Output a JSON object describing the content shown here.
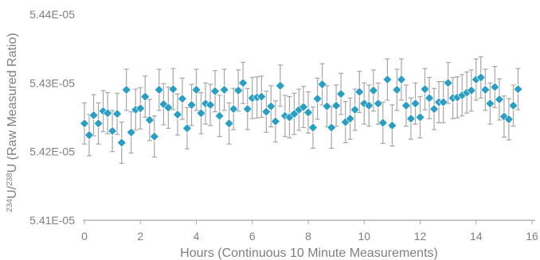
{
  "chart_data": {
    "type": "scatter",
    "xlabel": "Hours (Continuous 10 Minute Measurements)",
    "ylabel": {
      "iso1_mass": "234",
      "iso1_symbol": "U/",
      "iso2_mass": "238",
      "iso2_symbol": "U",
      "suffix": " (Raw Measured Ratio)"
    },
    "xlim": [
      0,
      16
    ],
    "ylim": [
      5.41e-05,
      5.44e-05
    ],
    "x_ticks": [
      "0",
      "2",
      "4",
      "6",
      "8",
      "10",
      "12",
      "14",
      "16"
    ],
    "x_tick_values": [
      0,
      2,
      4,
      6,
      8,
      10,
      12,
      14,
      16
    ],
    "y_ticks": [
      "5.41E-05",
      "5.42E-05",
      "5.43E-05",
      "5.44E-05"
    ],
    "y_tick_values": [
      5.41e-05,
      5.42e-05,
      5.43e-05,
      5.44e-05
    ],
    "grid": false,
    "marker_color": "#2b9ec4",
    "errorbar_color": "#a6a6a6",
    "axis_color": "#a6a6a6",
    "error": 3e-08,
    "series": [
      {
        "x": [
          0.0,
          0.17,
          0.33,
          0.5,
          0.67,
          0.83,
          1.0,
          1.17,
          1.33,
          1.5,
          1.67,
          1.83,
          2.0,
          2.17,
          2.33,
          2.5,
          2.67,
          2.83,
          3.0,
          3.17,
          3.33,
          3.5,
          3.67,
          3.83,
          4.0,
          4.17,
          4.33,
          4.5,
          4.67,
          4.83,
          5.0,
          5.17,
          5.33,
          5.5,
          5.67,
          5.83,
          6.0,
          6.17,
          6.33,
          6.5,
          6.67,
          6.83,
          7.0,
          7.17,
          7.33,
          7.5,
          7.67,
          7.83,
          8.0,
          8.17,
          8.33,
          8.5,
          8.67,
          8.83,
          9.0,
          9.17,
          9.33,
          9.5,
          9.67,
          9.83,
          10.0,
          10.17,
          10.33,
          10.5,
          10.67,
          10.83,
          11.0,
          11.17,
          11.33,
          11.5,
          11.67,
          11.83,
          12.0,
          12.17,
          12.33,
          12.5,
          12.67,
          12.83,
          13.0,
          13.17,
          13.33,
          13.5,
          13.67,
          13.83,
          14.0,
          14.17,
          14.33,
          14.5,
          14.67,
          14.83,
          15.0,
          15.17,
          15.33,
          15.5
        ],
        "y": [
          5.4241e-05,
          5.4224e-05,
          5.4253e-05,
          5.4241e-05,
          5.4259e-05,
          5.4256e-05,
          5.423e-05,
          5.4255e-05,
          5.4213e-05,
          5.429e-05,
          5.4228e-05,
          5.4261e-05,
          5.4263e-05,
          5.428e-05,
          5.4246e-05,
          5.4222e-05,
          5.429e-05,
          5.4269e-05,
          5.4264e-05,
          5.4291e-05,
          5.4254e-05,
          5.4277e-05,
          5.4234e-05,
          5.4268e-05,
          5.429e-05,
          5.4256e-05,
          5.427e-05,
          5.4268e-05,
          5.4288e-05,
          5.4252e-05,
          5.429e-05,
          5.4241e-05,
          5.4262e-05,
          5.4289e-05,
          5.43e-05,
          5.4262e-05,
          5.4278e-05,
          5.4279e-05,
          5.428e-05,
          5.4258e-05,
          5.4266e-05,
          5.4244e-05,
          5.4296e-05,
          5.4252e-05,
          5.425e-05,
          5.4255e-05,
          5.4261e-05,
          5.4265e-05,
          5.4257e-05,
          5.4235e-05,
          5.4277e-05,
          5.4298e-05,
          5.4266e-05,
          5.4235e-05,
          5.4267e-05,
          5.4284e-05,
          5.4243e-05,
          5.4248e-05,
          5.4261e-05,
          5.4287e-05,
          5.427e-05,
          5.4267e-05,
          5.4289e-05,
          5.427e-05,
          5.4242e-05,
          5.4305e-05,
          5.4238e-05,
          5.429e-05,
          5.4305e-05,
          5.4267e-05,
          5.4248e-05,
          5.427e-05,
          5.425e-05,
          5.4291e-05,
          5.4278e-05,
          5.4262e-05,
          5.4272e-05,
          5.4272e-05,
          5.43e-05,
          5.4278e-05,
          5.4279e-05,
          5.4282e-05,
          5.4286e-05,
          5.4289e-05,
          5.4305e-05,
          5.4308e-05,
          5.429e-05,
          5.427e-05,
          5.4294e-05,
          5.4276e-05,
          5.4251e-05,
          5.4247e-05,
          5.4267e-05,
          5.4291e-05
        ]
      }
    ]
  }
}
